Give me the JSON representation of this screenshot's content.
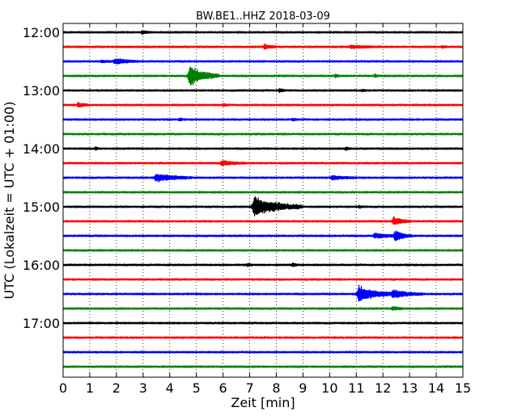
{
  "chart_data": {
    "type": "line",
    "title": "BW.BE1..HHZ 2018-03-09",
    "xlabel": "Zeit  [min]",
    "ylabel": "UTC (Lokalzeit = UTC + 01:00)",
    "xlim": [
      0,
      15
    ],
    "x_ticks": [
      "0",
      "1",
      "2",
      "3",
      "4",
      "5",
      "6",
      "7",
      "8",
      "9",
      "10",
      "11",
      "12",
      "13",
      "14",
      "15"
    ],
    "row_interval_min": 15,
    "start_time": "12:00",
    "y_tick_labels": [
      "12:00",
      "13:00",
      "14:00",
      "15:00",
      "16:00",
      "17:00"
    ],
    "grid": "vertical dotted at each minute",
    "trace_colors": [
      "#000000",
      "#ff0000",
      "#0000ff",
      "#008000"
    ],
    "rows": [
      {
        "start": "12:00",
        "events": [
          {
            "t": 2.95,
            "amp": 0.25,
            "dur": 0.15
          }
        ]
      },
      {
        "start": "12:15",
        "events": [
          {
            "t": 7.55,
            "amp": 0.45,
            "dur": 0.2
          },
          {
            "t": 10.8,
            "amp": 0.2,
            "dur": 0.5
          },
          {
            "t": 14.2,
            "amp": 0.15,
            "dur": 0.1
          }
        ]
      },
      {
        "start": "12:30",
        "events": [
          {
            "t": 1.45,
            "amp": 0.15,
            "dur": 0.25
          },
          {
            "t": 1.95,
            "amp": 0.45,
            "dur": 0.4
          }
        ]
      },
      {
        "start": "12:45",
        "events": [
          {
            "t": 4.75,
            "amp": 1.6,
            "dur": 0.5
          },
          {
            "t": 10.2,
            "amp": 0.25,
            "dur": 0.08
          },
          {
            "t": 11.7,
            "amp": 0.25,
            "dur": 0.08
          }
        ]
      },
      {
        "start": "13:00",
        "events": [
          {
            "t": 8.1,
            "amp": 0.35,
            "dur": 0.1
          },
          {
            "t": 11.2,
            "amp": 0.2,
            "dur": 0.08
          }
        ]
      },
      {
        "start": "13:15",
        "events": [
          {
            "t": 0.55,
            "amp": 0.35,
            "dur": 0.2
          },
          {
            "t": 6.0,
            "amp": 0.2,
            "dur": 0.1
          }
        ]
      },
      {
        "start": "13:30",
        "events": [
          {
            "t": 4.35,
            "amp": 0.2,
            "dur": 0.1
          },
          {
            "t": 8.6,
            "amp": 0.2,
            "dur": 0.1
          }
        ]
      },
      {
        "start": "13:45",
        "events": []
      },
      {
        "start": "14:00",
        "events": [
          {
            "t": 1.2,
            "amp": 0.2,
            "dur": 0.1
          },
          {
            "t": 10.6,
            "amp": 0.2,
            "dur": 0.1
          }
        ]
      },
      {
        "start": "14:15",
        "events": [
          {
            "t": 5.95,
            "amp": 0.35,
            "dur": 0.4
          }
        ]
      },
      {
        "start": "14:30",
        "events": [
          {
            "t": 3.5,
            "amp": 0.65,
            "dur": 0.6
          },
          {
            "t": 10.1,
            "amp": 0.3,
            "dur": 0.4
          }
        ]
      },
      {
        "start": "14:45",
        "events": []
      },
      {
        "start": "15:00",
        "events": [
          {
            "t": 7.2,
            "amp": 1.5,
            "dur": 0.8
          },
          {
            "t": 11.1,
            "amp": 0.2,
            "dur": 0.1
          }
        ]
      },
      {
        "start": "15:15",
        "events": [
          {
            "t": 12.4,
            "amp": 0.6,
            "dur": 0.3
          }
        ]
      },
      {
        "start": "15:30",
        "events": [
          {
            "t": 11.7,
            "amp": 0.35,
            "dur": 0.5
          },
          {
            "t": 12.45,
            "amp": 0.8,
            "dur": 0.3
          }
        ]
      },
      {
        "start": "15:45",
        "events": []
      },
      {
        "start": "16:00",
        "events": [
          {
            "t": 6.9,
            "amp": 0.25,
            "dur": 0.1
          },
          {
            "t": 8.6,
            "amp": 0.35,
            "dur": 0.1
          }
        ]
      },
      {
        "start": "16:15",
        "events": []
      },
      {
        "start": "16:30",
        "events": [
          {
            "t": 11.1,
            "amp": 1.2,
            "dur": 0.6
          },
          {
            "t": 12.4,
            "amp": 0.6,
            "dur": 0.5
          }
        ]
      },
      {
        "start": "16:45",
        "events": [
          {
            "t": 12.35,
            "amp": 0.3,
            "dur": 0.2
          }
        ]
      },
      {
        "start": "17:00",
        "events": []
      },
      {
        "start": "17:15",
        "events": []
      },
      {
        "start": "17:30",
        "events": []
      },
      {
        "start": "17:45",
        "events": []
      }
    ]
  }
}
